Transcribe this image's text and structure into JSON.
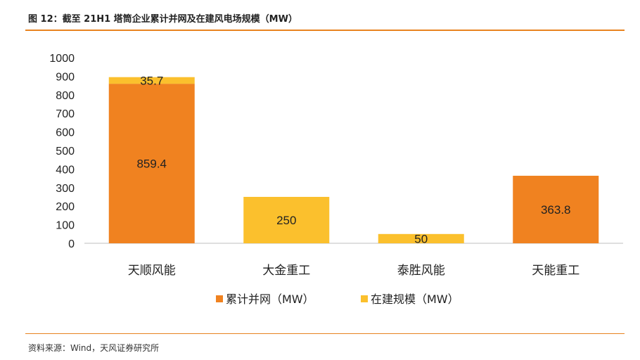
{
  "figure": {
    "title": "图 12：截至 21H1 塔筒企业累计并网及在建风电场规模（MW）",
    "source": "资料来源：Wind，天风证券研究所"
  },
  "colors": {
    "accent": "#e8831f",
    "series1": "#f08220",
    "series2": "#fbc02d"
  },
  "chart_data": {
    "type": "bar",
    "stacked": true,
    "categories": [
      "天顺风能",
      "大金重工",
      "泰胜风能",
      "天能重工"
    ],
    "series": [
      {
        "name": "累计并网（MW）",
        "values": [
          859.4,
          0,
          0,
          363.8
        ]
      },
      {
        "name": "在建规模（MW）",
        "values": [
          35.7,
          250,
          50,
          0
        ]
      }
    ],
    "yticks": [
      0,
      100,
      200,
      300,
      400,
      500,
      600,
      700,
      800,
      900,
      1000
    ],
    "ylim": [
      0,
      1000
    ],
    "grid": false,
    "legend_position": "bottom"
  }
}
